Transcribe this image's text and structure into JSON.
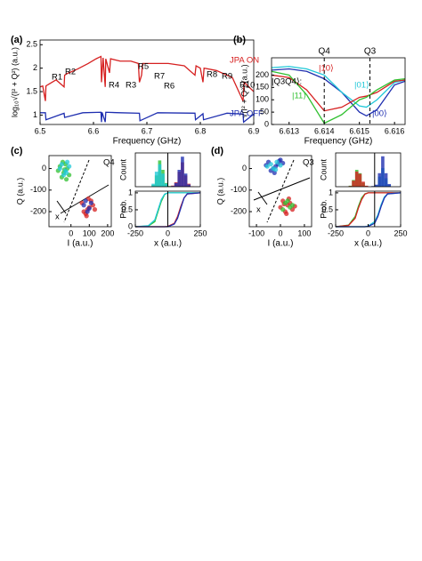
{
  "chart_data": [
    {
      "type": "line",
      "panel": "(a)",
      "xlabel": "Frequency (GHz)",
      "ylabel": "log₁₀√(I² + Q²) (a.u.)",
      "xlim": [
        6.5,
        6.9
      ],
      "xticks": [
        6.5,
        6.6,
        6.7,
        6.8,
        6.9
      ],
      "ylim": [
        0.8,
        2.6
      ],
      "yticks": [
        1,
        1.5,
        2,
        2.5
      ],
      "series": [
        {
          "name": "JPA ON",
          "color": "#d62020",
          "x": [
            6.5,
            6.505,
            6.51,
            6.511,
            6.515,
            6.53,
            6.545,
            6.546,
            6.55,
            6.57,
            6.59,
            6.605,
            6.614,
            6.615,
            6.618,
            6.622,
            6.623,
            6.63,
            6.632,
            6.65,
            6.67,
            6.684,
            6.686,
            6.69,
            6.692,
            6.71,
            6.74,
            6.77,
            6.79,
            6.792,
            6.8,
            6.805,
            6.807,
            6.83,
            6.86,
            6.88,
            6.882,
            6.9
          ],
          "values": [
            1.6,
            1.62,
            1.3,
            1.62,
            1.65,
            1.75,
            1.6,
            1.85,
            1.88,
            1.98,
            2.1,
            2.2,
            2.25,
            1.7,
            2.22,
            1.6,
            2.2,
            1.9,
            2.2,
            2.15,
            2.15,
            2.1,
            1.7,
            1.85,
            2.1,
            2.1,
            2.1,
            2.05,
            1.85,
            2.05,
            2.0,
            1.7,
            2.0,
            1.95,
            1.8,
            1.3,
            1.7,
            1.5
          ]
        },
        {
          "name": "JPA OFF",
          "color": "#1f2fb0",
          "x": [
            6.5,
            6.51,
            6.511,
            6.545,
            6.546,
            6.58,
            6.614,
            6.615,
            6.616,
            6.622,
            6.623,
            6.65,
            6.686,
            6.687,
            6.72,
            6.79,
            6.791,
            6.805,
            6.806,
            6.85,
            6.88,
            6.881,
            6.9
          ],
          "values": [
            1.05,
            1.05,
            0.9,
            1.04,
            0.95,
            1.05,
            1.06,
            0.85,
            1.06,
            0.85,
            1.06,
            1.05,
            1.04,
            0.88,
            1.05,
            1.04,
            0.9,
            1.03,
            0.9,
            1.04,
            1.02,
            0.85,
            1.02
          ]
        }
      ],
      "annotations": [
        "R1",
        "R2",
        "R3",
        "R4",
        "R5",
        "R6",
        "R7",
        "R8",
        "R9",
        "R10"
      ]
    },
    {
      "type": "line",
      "panel": "(b)",
      "xlabel": "Frequency (GHz)",
      "ylabel": "√(I² + Q²) (a.u.)",
      "xlim": [
        6.6125,
        6.6163
      ],
      "xticks": [
        6.613,
        6.614,
        6.615,
        6.616
      ],
      "ylim": [
        0,
        270
      ],
      "yticks": [
        0,
        50,
        100,
        150,
        200
      ],
      "x": [
        6.6125,
        6.613,
        6.6135,
        6.614,
        6.6145,
        6.615,
        6.6152,
        6.6155,
        6.616,
        6.6163
      ],
      "series": [
        {
          "name": "|00⟩",
          "color": "#1f2fb0",
          "values": [
            220,
            225,
            215,
            185,
            130,
            50,
            35,
            60,
            160,
            175
          ]
        },
        {
          "name": "|01⟩",
          "color": "#20c8d8",
          "values": [
            230,
            235,
            225,
            200,
            130,
            75,
            70,
            100,
            170,
            180
          ]
        },
        {
          "name": "|10⟩",
          "color": "#d62020",
          "values": [
            200,
            190,
            140,
            55,
            70,
            110,
            115,
            130,
            175,
            180
          ]
        },
        {
          "name": "|11⟩",
          "color": "#30c030",
          "values": [
            215,
            200,
            120,
            5,
            40,
            100,
            110,
            140,
            180,
            185
          ]
        }
      ],
      "vlines": [
        {
          "x": 6.614,
          "label": "Q4"
        },
        {
          "x": 6.6153,
          "label": "Q3"
        }
      ],
      "annotations": [
        "|Q3Q4⟩:"
      ]
    },
    {
      "type": "scatter",
      "panel": "(c)",
      "xlabel": "I (a.u.)",
      "ylabel": "Q (a.u.)",
      "xlim": [
        -120,
        220
      ],
      "xticks": [
        0,
        100,
        200
      ],
      "ylim": [
        -270,
        60
      ],
      "yticks": [
        -200,
        -100,
        0
      ],
      "series": [
        {
          "name": "|11⟩",
          "color": "#30c030",
          "x": [
            -60,
            -40,
            -20,
            -50,
            -30,
            -10,
            -70,
            -45,
            -25,
            -35
          ],
          "values": [
            10,
            -20,
            0,
            -40,
            20,
            -30,
            -10,
            30,
            -50,
            -5
          ]
        },
        {
          "name": "|01⟩",
          "color": "#20c8d8",
          "x": [
            -50,
            -30,
            -10,
            -40,
            -20,
            -60,
            -25
          ],
          "values": [
            20,
            -10,
            10,
            -30,
            30,
            0,
            -20
          ]
        },
        {
          "name": "|10⟩",
          "color": "#d62020",
          "x": [
            60,
            90,
            120,
            80,
            110,
            70,
            100,
            130,
            95,
            85
          ],
          "values": [
            -160,
            -190,
            -170,
            -210,
            -150,
            -200,
            -180,
            -190,
            -140,
            -220
          ]
        },
        {
          "name": "|00⟩",
          "color": "#1f2fb0",
          "x": [
            70,
            100,
            110,
            90,
            80
          ],
          "values": [
            -170,
            -185,
            -160,
            -200,
            -150
          ]
        }
      ],
      "annotations": [
        "Q4",
        "x"
      ]
    },
    {
      "type": "histogram",
      "ylabel": "Count",
      "ylim": [
        0,
        90
      ],
      "threshold": 0,
      "bins": [
        -250,
        -225,
        -200,
        -175,
        -150,
        -125,
        -100,
        -75,
        -50,
        -25,
        0,
        25,
        50,
        75,
        100,
        125,
        150,
        175,
        200,
        225,
        250
      ],
      "series": [
        {
          "name": "|11⟩",
          "color": "#30c030",
          "values": [
            0,
            0,
            0,
            0,
            0,
            5,
            30,
            70,
            45,
            10,
            2,
            0,
            0,
            0,
            0,
            0,
            0,
            0,
            0,
            0
          ]
        },
        {
          "name": "|01⟩",
          "color": "#20c8d8",
          "values": [
            0,
            0,
            0,
            0,
            0,
            8,
            40,
            60,
            35,
            8,
            1,
            0,
            0,
            0,
            0,
            0,
            0,
            0,
            0,
            0
          ]
        },
        {
          "name": "|10⟩",
          "color": "#d62020",
          "values": [
            0,
            0,
            0,
            0,
            0,
            0,
            0,
            0,
            0,
            0,
            1,
            3,
            12,
            40,
            65,
            30,
            8,
            1,
            0,
            0
          ]
        },
        {
          "name": "|00⟩",
          "color": "#1f2fb0",
          "values": [
            0,
            0,
            0,
            0,
            0,
            0,
            0,
            0,
            0,
            0,
            0,
            2,
            10,
            45,
            80,
            35,
            6,
            0,
            0,
            0
          ]
        }
      ]
    },
    {
      "type": "line",
      "xlabel": "x (a.u.)",
      "ylabel": "Prob.",
      "threshold": 0,
      "xlim": [
        -250,
        250
      ],
      "xticks": [
        -250,
        0,
        250
      ],
      "ylim": [
        0,
        1.05
      ],
      "yticks": [
        0,
        0.5,
        1
      ],
      "x": [
        -250,
        -150,
        -100,
        -75,
        -50,
        -25,
        0,
        50,
        75,
        100,
        125,
        150,
        250
      ],
      "series": [
        {
          "name": "|11⟩",
          "color": "#30c030",
          "values": [
            0,
            0.02,
            0.15,
            0.45,
            0.75,
            0.95,
            1,
            1,
            1,
            1,
            1,
            1,
            1
          ]
        },
        {
          "name": "|01⟩",
          "color": "#20c8d8",
          "values": [
            0,
            0.03,
            0.2,
            0.5,
            0.8,
            0.96,
            1,
            1,
            1,
            1,
            1,
            1,
            1
          ]
        },
        {
          "name": "|10⟩",
          "color": "#d62020",
          "values": [
            0,
            0,
            0,
            0,
            0,
            0,
            0.01,
            0.1,
            0.3,
            0.6,
            0.85,
            0.97,
            1
          ]
        },
        {
          "name": "|00⟩",
          "color": "#1f2fb0",
          "values": [
            0,
            0,
            0,
            0,
            0,
            0,
            0,
            0.08,
            0.25,
            0.55,
            0.85,
            0.97,
            1
          ]
        }
      ]
    },
    {
      "type": "scatter",
      "panel": "(d)",
      "xlabel": "I (a.u.)",
      "ylabel": "Q (a.u.)",
      "xlim": [
        -130,
        130
      ],
      "xticks": [
        -100,
        0,
        100
      ],
      "ylim": [
        -270,
        60
      ],
      "yticks": [
        -200,
        -100,
        0
      ],
      "series": [
        {
          "name": "|00⟩",
          "color": "#1f2fb0",
          "x": [
            -50,
            -20,
            0,
            -40,
            -10,
            -30,
            10,
            -60,
            -25,
            -5
          ],
          "values": [
            30,
            10,
            40,
            -10,
            20,
            0,
            25,
            15,
            -20,
            35
          ]
        },
        {
          "name": "|01⟩",
          "color": "#20c8d8",
          "x": [
            -40,
            -15,
            -30,
            0,
            -55,
            -20
          ],
          "values": [
            20,
            30,
            0,
            15,
            10,
            -5
          ]
        },
        {
          "name": "|10⟩",
          "color": "#d62020",
          "x": [
            10,
            30,
            50,
            20,
            40,
            0,
            35,
            60,
            25,
            15
          ],
          "values": [
            -150,
            -170,
            -190,
            -200,
            -160,
            -180,
            -140,
            -175,
            -210,
            -165
          ]
        },
        {
          "name": "|11⟩",
          "color": "#30c030",
          "x": [
            20,
            40,
            10,
            30,
            50
          ],
          "values": [
            -160,
            -180,
            -190,
            -150,
            -170
          ]
        }
      ],
      "annotations": [
        "Q3",
        "x"
      ]
    },
    {
      "type": "histogram",
      "ylabel": "Count",
      "ylim": [
        0,
        100
      ],
      "threshold": 50,
      "bins": [
        -250,
        -225,
        -200,
        -175,
        -150,
        -125,
        -100,
        -75,
        -50,
        -25,
        0,
        25,
        50,
        75,
        100,
        125,
        150,
        175,
        200,
        225,
        250
      ],
      "series": [
        {
          "name": "|11⟩",
          "color": "#30c030",
          "values": [
            0,
            0,
            0,
            0,
            3,
            20,
            50,
            40,
            12,
            2,
            0,
            0,
            0,
            0,
            0,
            0,
            0,
            0,
            0,
            0
          ]
        },
        {
          "name": "|10⟩",
          "color": "#d62020",
          "values": [
            0,
            0,
            0,
            0,
            2,
            18,
            45,
            38,
            15,
            3,
            0,
            0,
            0,
            0,
            0,
            0,
            0,
            0,
            0,
            0
          ]
        },
        {
          "name": "|01⟩",
          "color": "#20c8d8",
          "values": [
            0,
            0,
            0,
            0,
            0,
            0,
            0,
            0,
            0,
            0,
            0,
            1,
            4,
            30,
            55,
            25,
            5,
            0,
            0,
            0
          ]
        },
        {
          "name": "|00⟩",
          "color": "#1f2fb0",
          "values": [
            0,
            0,
            0,
            0,
            0,
            0,
            0,
            0,
            0,
            0,
            0,
            2,
            6,
            40,
            90,
            40,
            8,
            0,
            0,
            0
          ]
        }
      ]
    },
    {
      "type": "line",
      "xlabel": "x (a.u.)",
      "ylabel": "Prob.",
      "threshold": 50,
      "xlim": [
        -250,
        250
      ],
      "xticks": [
        -250,
        0,
        250
      ],
      "ylim": [
        0,
        1.05
      ],
      "yticks": [
        0,
        0.5,
        1
      ],
      "x": [
        -250,
        -150,
        -100,
        -75,
        -50,
        -25,
        0,
        50,
        75,
        100,
        125,
        150,
        250
      ],
      "series": [
        {
          "name": "|11⟩",
          "color": "#30c030",
          "values": [
            0,
            0.05,
            0.3,
            0.6,
            0.85,
            0.97,
            1,
            1,
            1,
            1,
            1,
            1,
            1
          ]
        },
        {
          "name": "|10⟩",
          "color": "#d62020",
          "values": [
            0,
            0.04,
            0.25,
            0.55,
            0.8,
            0.96,
            1,
            1,
            1,
            1,
            1,
            1,
            1
          ]
        },
        {
          "name": "|01⟩",
          "color": "#20c8d8",
          "values": [
            0,
            0,
            0,
            0,
            0,
            0,
            0.02,
            0.15,
            0.35,
            0.65,
            0.88,
            0.97,
            1
          ]
        },
        {
          "name": "|00⟩",
          "color": "#1f2fb0",
          "values": [
            0,
            0,
            0,
            0,
            0,
            0,
            0.01,
            0.1,
            0.3,
            0.6,
            0.85,
            0.97,
            1
          ]
        }
      ]
    }
  ]
}
